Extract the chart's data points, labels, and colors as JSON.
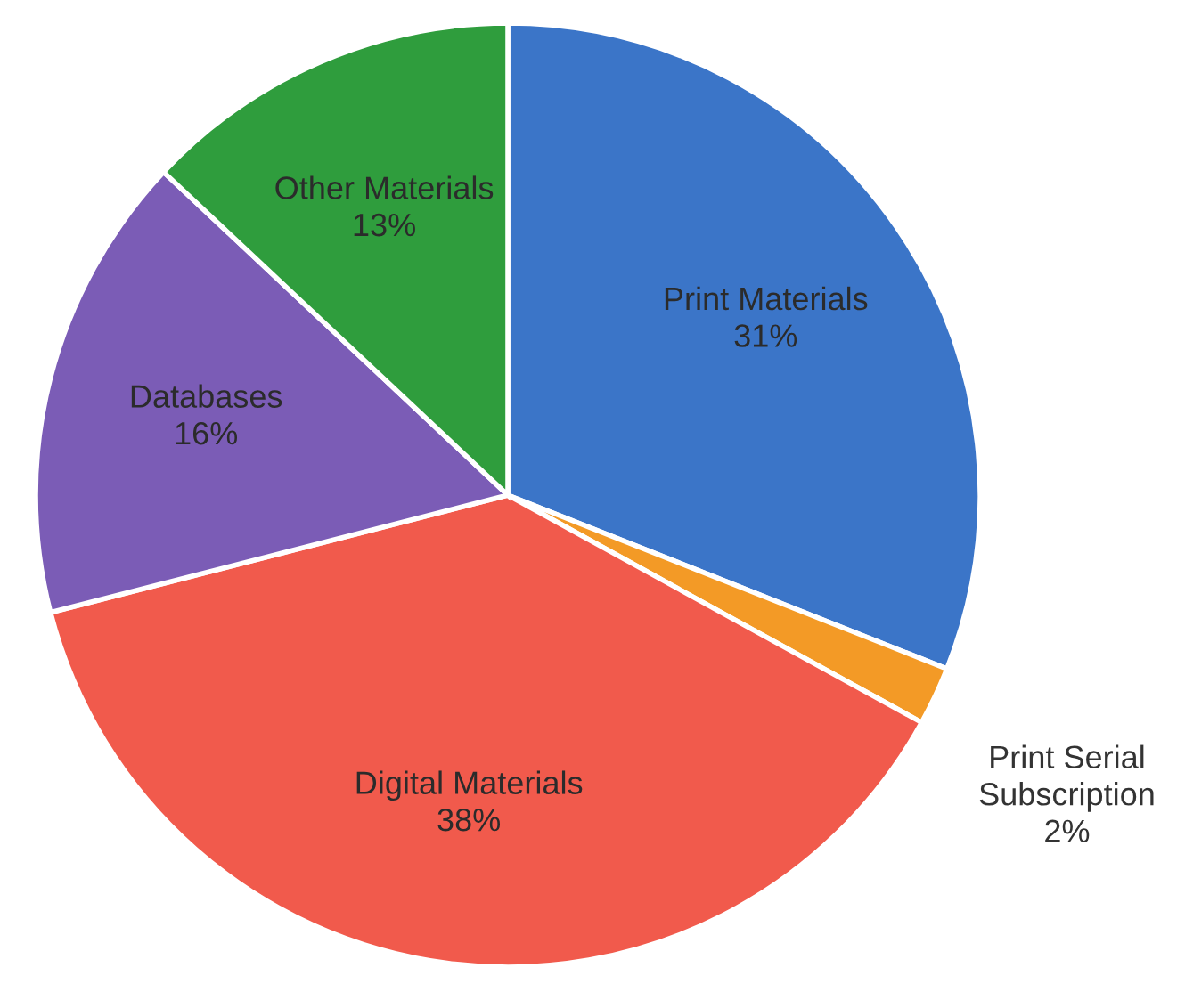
{
  "chart_data": {
    "type": "pie",
    "categories": [
      "Print Materials",
      "Print Serial Subscription",
      "Digital Materials",
      "Databases",
      "Other Materials"
    ],
    "values": [
      31,
      2,
      38,
      16,
      13
    ],
    "colors": [
      "#3b75c8",
      "#f39a26",
      "#f15a4c",
      "#7b5cb6",
      "#2f9d3d"
    ],
    "value_labels": [
      "31%",
      "2%",
      "38%",
      "16%",
      "13%"
    ],
    "legend": false
  }
}
